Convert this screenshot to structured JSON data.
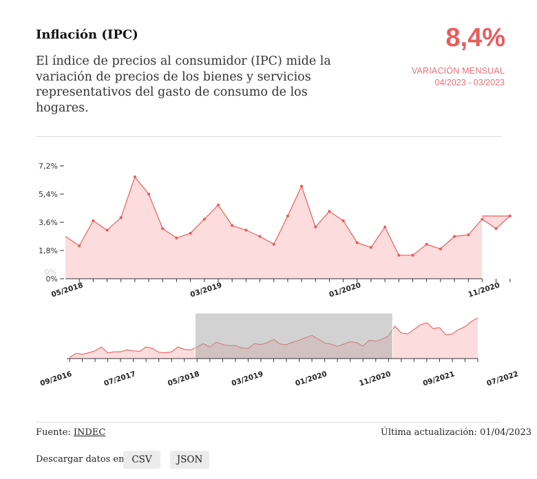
{
  "header": {
    "title": "Inflación (IPC)",
    "description": "El índice de precios al consumidor (IPC) mide la variación de precios de los bienes y servicios representativos del gasto de consumo de los hogares.",
    "value": "8,4%",
    "value_label": "VARIACIÓN MENSUAL",
    "value_period": "04/2023 - 03/2023"
  },
  "footer": {
    "source_label": "Fuente:",
    "source_link": "INDEC",
    "updated": "Última actualización: 01/04/2023",
    "download_label": "Descargar datos en:",
    "csv": "CSV",
    "json": "JSON"
  },
  "colors": {
    "accent": "#e85d5d",
    "area_fill": "#fcdcdc",
    "brush": "#a6a6a6"
  },
  "chart_data": [
    {
      "type": "area",
      "view": "focus",
      "x": [
        "04/2018",
        "05/2018",
        "06/2018",
        "07/2018",
        "08/2018",
        "09/2018",
        "10/2018",
        "11/2018",
        "12/2018",
        "01/2019",
        "02/2019",
        "03/2019",
        "04/2019",
        "05/2019",
        "06/2019",
        "07/2019",
        "08/2019",
        "09/2019",
        "10/2019",
        "11/2019",
        "12/2019",
        "01/2020",
        "02/2020",
        "03/2020",
        "04/2020",
        "05/2020",
        "06/2020",
        "07/2020",
        "08/2020",
        "09/2020",
        "10/2020",
        "11/2020",
        "12/2020"
      ],
      "values": [
        2.7,
        2.1,
        3.7,
        3.1,
        3.9,
        6.5,
        5.4,
        3.2,
        2.6,
        2.9,
        3.8,
        4.7,
        3.4,
        3.1,
        2.7,
        2.2,
        4.0,
        5.9,
        3.3,
        4.3,
        3.7,
        2.3,
        2.0,
        3.3,
        1.5,
        1.5,
        2.2,
        1.9,
        2.7,
        2.8,
        3.8,
        3.2,
        4.0
      ],
      "y_ticks": [
        "0%",
        "1,8%",
        "3,6%",
        "5,4%",
        "7,2%"
      ],
      "x_ticks": [
        "05/2018",
        "03/2019",
        "01/2020",
        "11/2020"
      ],
      "ylim": [
        0,
        7.2
      ]
    },
    {
      "type": "area",
      "view": "context",
      "x_ticks": [
        "09/2016",
        "07/2017",
        "05/2018",
        "03/2019",
        "01/2020",
        "11/2020",
        "09/2021",
        "07/2022"
      ],
      "values": [
        0.2,
        1.1,
        0.9,
        1.2,
        1.6,
        2.4,
        1.2,
        1.4,
        1.4,
        1.8,
        1.6,
        1.5,
        2.4,
        2.1,
        1.3,
        1.2,
        1.4,
        2.4,
        1.9,
        1.8,
        2.4,
        3.1,
        2.4,
        3.4,
        2.9,
        2.7,
        2.7,
        2.2,
        2.1,
        3.1,
        2.9,
        3.3,
        4.0,
        3.0,
        2.9,
        3.4,
        3.8,
        4.3,
        4.8,
        4.0,
        3.2,
        3.0,
        2.5,
        3.0,
        3.5,
        3.3,
        2.6,
        3.8,
        3.6,
        4.0,
        4.7,
        6.7,
        5.3,
        5.1,
        6.0,
        7.0,
        7.4,
        6.2,
        6.4,
        4.9,
        5.1,
        6.0,
        6.6,
        7.7,
        8.4
      ],
      "brush_range": [
        "05/2018",
        "11/2020"
      ]
    }
  ]
}
